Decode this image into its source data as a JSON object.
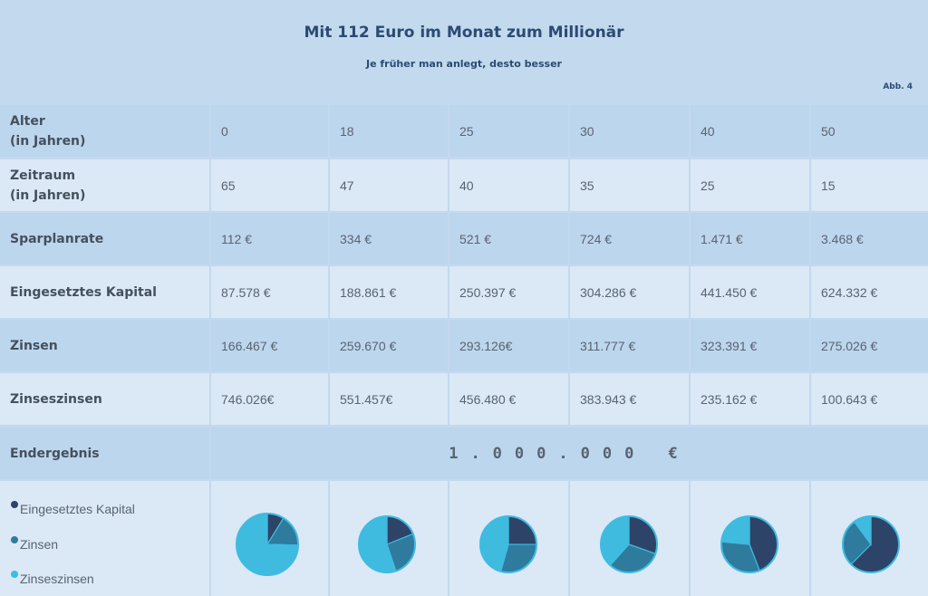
{
  "header": {
    "title": "Mit 112 Euro im Monat zum Millionär",
    "subtitle": "Je früher man anlegt, desto besser",
    "figref": "Abb. 4"
  },
  "table": {
    "rows": [
      {
        "label": "Alter\n(in Jahren)",
        "values": [
          "0",
          "18",
          "25",
          "30",
          "40",
          "50"
        ]
      },
      {
        "label": "Zeitraum\n(in Jahren)",
        "values": [
          "65",
          "47",
          "40",
          "35",
          "25",
          "15"
        ]
      },
      {
        "label": "Sparplanrate",
        "values": [
          "112 €",
          "334 €",
          "521 €",
          "724 €",
          "1.471 €",
          "3.468 €"
        ]
      },
      {
        "label": "Eingesetztes Kapital",
        "values": [
          "87.578 €",
          "188.861 €",
          "250.397 €",
          "304.286 €",
          "441.450 €",
          "624.332 €"
        ]
      },
      {
        "label": "Zinsen",
        "values": [
          "166.467 €",
          "259.670 €",
          "293.126€",
          "311.777 €",
          "323.391 €",
          "275.026 €"
        ]
      },
      {
        "label": "Zinseszinsen",
        "values": [
          "746.026€",
          "551.457€",
          "456.480 €",
          "383.943 €",
          "235.162 €",
          "100.643 €"
        ]
      }
    ],
    "end_label": "Endergebnis",
    "end_value": "1.000.000 €"
  },
  "legend": [
    {
      "label": "Eingesetztes Kapital",
      "color": "#2d4468"
    },
    {
      "label": "Zinsen",
      "color": "#2e7b9e"
    },
    {
      "label": "Zinseszinsen",
      "color": "#3fbbe0"
    }
  ],
  "chart_data": {
    "type": "pie",
    "categories": [
      "0",
      "18",
      "25",
      "30",
      "40",
      "50"
    ],
    "series": [
      {
        "name": "Eingesetztes Kapital",
        "values": [
          87578,
          188861,
          250397,
          304286,
          441450,
          624332
        ]
      },
      {
        "name": "Zinsen",
        "values": [
          166467,
          259670,
          293126,
          311777,
          323391,
          275026
        ]
      },
      {
        "name": "Zinseszinsen",
        "values": [
          746026,
          551457,
          456480,
          383943,
          235162,
          100643
        ]
      }
    ]
  }
}
